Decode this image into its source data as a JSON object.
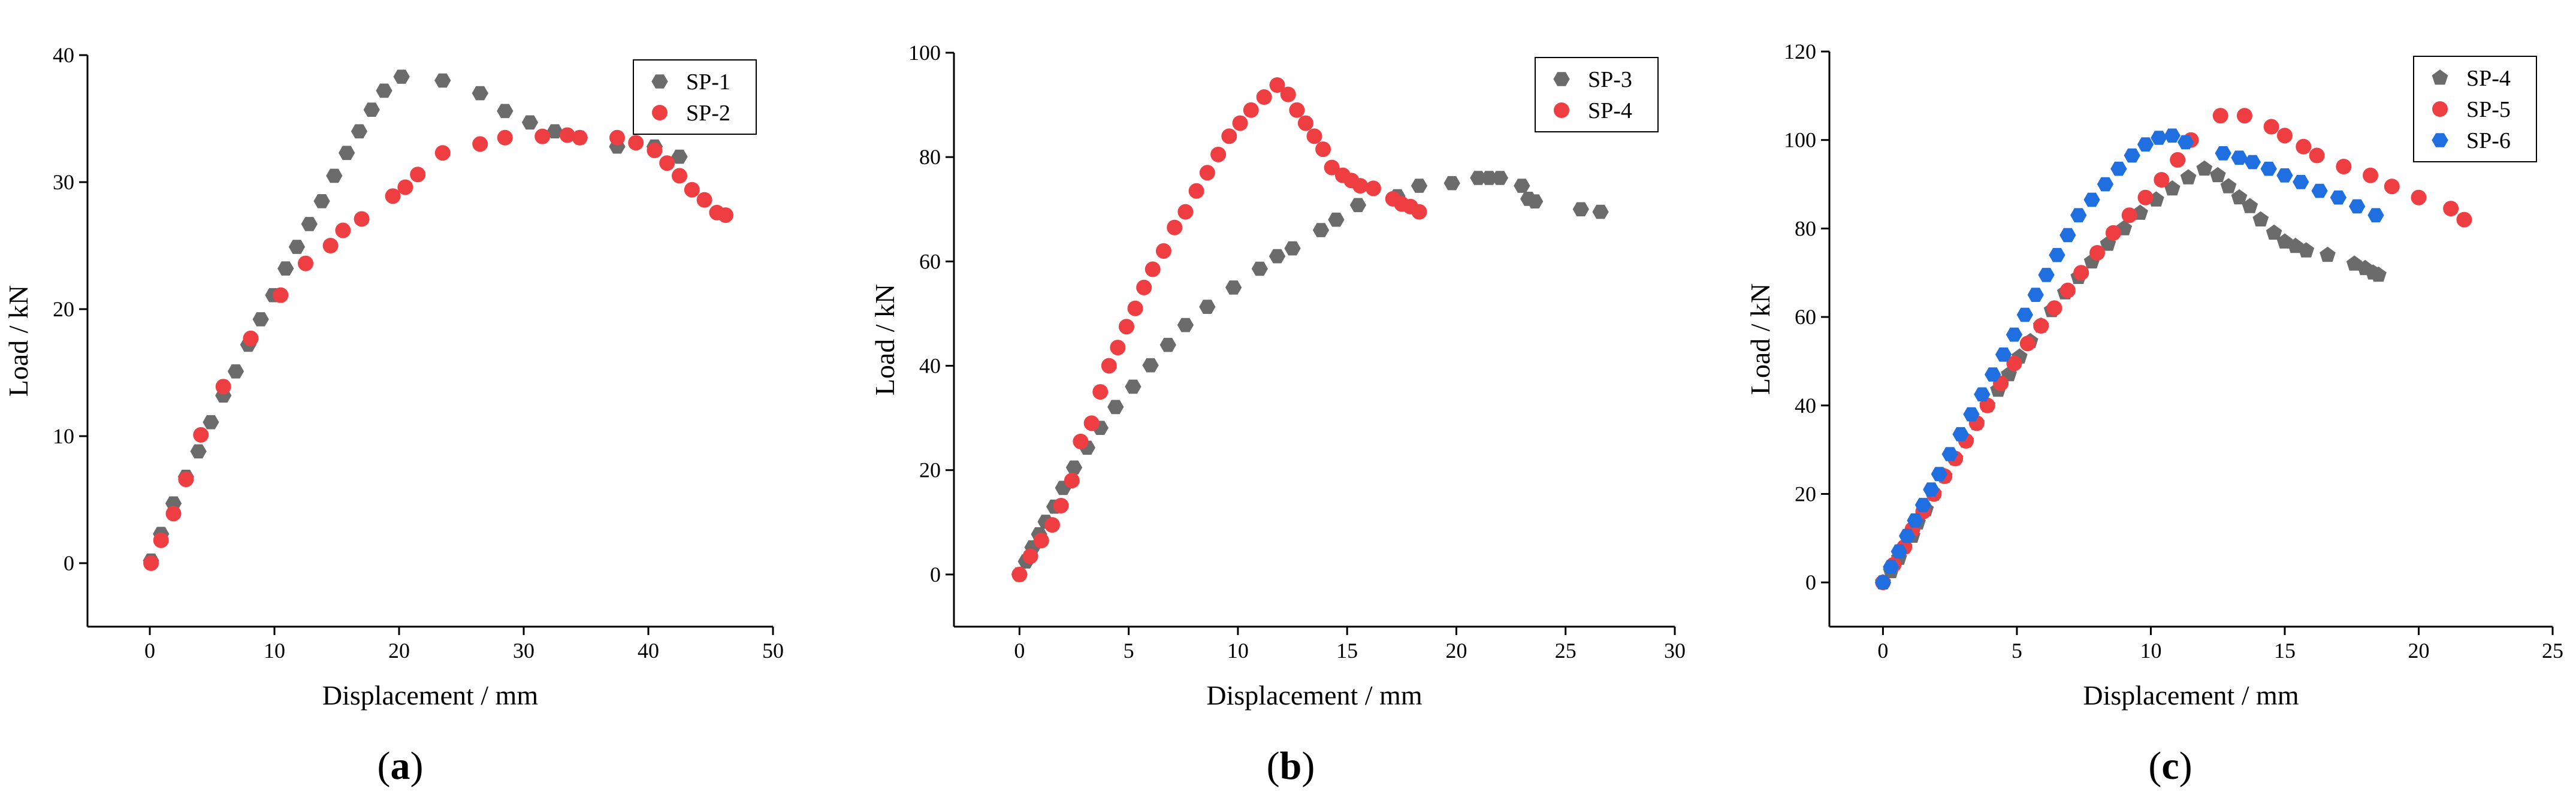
{
  "figure": {
    "colors": {
      "gray": "#6b6b6b",
      "red": "#ef3e42",
      "blue": "#1f6fe0",
      "axis": "#000000"
    }
  },
  "chart_data": [
    {
      "type": "scatter",
      "panel_label": "a",
      "xlabel": "Displacement / mm",
      "ylabel": "Load / kN",
      "xlim": [
        -5,
        50
      ],
      "ylim": [
        -5,
        40
      ],
      "xticks": [
        0,
        10,
        20,
        30,
        40,
        50
      ],
      "yticks": [
        0,
        10,
        20,
        30,
        40
      ],
      "xtick_labels": [
        "0",
        "10",
        "20",
        "30",
        "40",
        "50"
      ],
      "ytick_labels": [
        "0",
        "10",
        "20",
        "30",
        "40"
      ],
      "legend": "top-right",
      "series": [
        {
          "name": "SP-1",
          "marker": "hexagon",
          "color": "#6b6b6b",
          "x": [
            0.1,
            0.9,
            1.9,
            2.9,
            3.9,
            4.9,
            5.9,
            6.9,
            7.9,
            8.9,
            9.9,
            10.9,
            11.8,
            12.8,
            13.8,
            14.8,
            15.8,
            16.8,
            17.8,
            18.8,
            20.2,
            23.5,
            26.5,
            28.5,
            30.5,
            32.5,
            34.5,
            37.5,
            40.5,
            42.5
          ],
          "y": [
            0.2,
            2.3,
            4.7,
            6.8,
            8.8,
            11.1,
            13.2,
            15.1,
            17.2,
            19.2,
            21.1,
            23.2,
            24.9,
            26.7,
            28.5,
            30.5,
            32.3,
            34.0,
            35.7,
            37.2,
            38.3,
            38.0,
            37.0,
            35.6,
            34.7,
            34.0,
            33.5,
            32.8,
            32.8,
            32.0
          ]
        },
        {
          "name": "SP-2",
          "marker": "circle",
          "color": "#ef3e42",
          "x": [
            0.1,
            0.9,
            1.9,
            2.9,
            4.1,
            5.9,
            8.1,
            10.5,
            12.5,
            14.5,
            15.5,
            17.0,
            19.5,
            20.5,
            21.5,
            23.5,
            26.5,
            28.5,
            31.5,
            33.5,
            34.5,
            37.5,
            39.0,
            40.5,
            41.5,
            42.5,
            43.5,
            44.5,
            45.5,
            46.2
          ],
          "y": [
            0.0,
            1.8,
            3.9,
            6.6,
            10.1,
            13.9,
            17.7,
            21.1,
            23.6,
            25.0,
            26.2,
            27.1,
            28.9,
            29.6,
            30.6,
            32.3,
            33.0,
            33.5,
            33.6,
            33.7,
            33.5,
            33.5,
            33.1,
            32.5,
            31.5,
            30.5,
            29.4,
            28.6,
            27.6,
            27.4
          ]
        }
      ]
    },
    {
      "type": "scatter",
      "panel_label": "b",
      "xlabel": "Displacement / mm",
      "ylabel": "Load / kN",
      "xlim": [
        -3,
        30
      ],
      "ylim": [
        -10,
        100
      ],
      "xticks": [
        0,
        5,
        10,
        15,
        20,
        25,
        30
      ],
      "yticks": [
        0,
        20,
        40,
        60,
        80,
        100
      ],
      "xtick_labels": [
        "0",
        "5",
        "10",
        "15",
        "20",
        "25",
        "30"
      ],
      "ytick_labels": [
        "0",
        "20",
        "40",
        "60",
        "80",
        "100"
      ],
      "legend": "top-right",
      "series": [
        {
          "name": "SP-3",
          "marker": "hexagon",
          "color": "#6b6b6b",
          "x": [
            0.0,
            0.3,
            0.6,
            0.9,
            1.2,
            1.6,
            2.0,
            2.5,
            3.1,
            3.7,
            4.4,
            5.2,
            6.0,
            6.8,
            7.6,
            8.6,
            9.8,
            11.0,
            11.8,
            12.5,
            13.8,
            14.5,
            15.5,
            17.3,
            18.3,
            19.8,
            21.0,
            21.5,
            22.0,
            23.0,
            23.3,
            23.6,
            25.7,
            26.6
          ],
          "y": [
            0.0,
            2.5,
            5.2,
            7.7,
            10.1,
            13.0,
            16.6,
            20.5,
            24.3,
            28.1,
            32.1,
            36.0,
            40.1,
            44.0,
            47.8,
            51.3,
            55.0,
            58.6,
            61.0,
            62.5,
            66.0,
            68.0,
            70.8,
            72.5,
            74.5,
            75.0,
            76.0,
            76.0,
            76.0,
            74.5,
            72.0,
            71.5,
            70.0,
            69.5
          ]
        },
        {
          "name": "SP-4",
          "marker": "circle",
          "color": "#ef3e42",
          "x": [
            0.0,
            0.5,
            1.0,
            1.5,
            1.9,
            2.4,
            2.8,
            3.3,
            3.7,
            4.1,
            4.5,
            4.9,
            5.3,
            5.7,
            6.1,
            6.6,
            7.1,
            7.6,
            8.1,
            8.6,
            9.1,
            9.6,
            10.1,
            10.6,
            11.2,
            11.8,
            12.3,
            12.7,
            13.1,
            13.5,
            13.9,
            14.3,
            14.8,
            15.2,
            15.6,
            16.2,
            17.1,
            17.5,
            17.9,
            18.3
          ],
          "y": [
            0.0,
            3.5,
            6.5,
            9.5,
            13.2,
            18.0,
            25.5,
            29.0,
            35.0,
            40.0,
            43.5,
            47.5,
            51.0,
            55.0,
            58.5,
            62.0,
            66.5,
            69.5,
            73.5,
            77.0,
            80.5,
            84.0,
            86.5,
            89.0,
            91.5,
            93.8,
            92.0,
            89.0,
            86.5,
            84.0,
            81.5,
            78.0,
            76.5,
            75.5,
            74.5,
            74.0,
            72.0,
            71.0,
            70.5,
            69.5
          ]
        }
      ]
    },
    {
      "type": "scatter",
      "panel_label": "c",
      "xlabel": "Displacement / mm",
      "ylabel": "Load / kN",
      "xlim": [
        -2,
        25
      ],
      "ylim": [
        -10,
        120
      ],
      "xticks": [
        0,
        5,
        10,
        15,
        20,
        25
      ],
      "yticks": [
        0,
        20,
        40,
        60,
        80,
        100,
        120
      ],
      "xtick_labels": [
        "0",
        "5",
        "10",
        "15",
        "20",
        "25"
      ],
      "ytick_labels": [
        "0",
        "20",
        "40",
        "60",
        "80",
        "100",
        "120"
      ],
      "legend": "top-left",
      "series": [
        {
          "name": "SP-4",
          "marker": "pentagon",
          "color": "#6b6b6b",
          "x": [
            0.0,
            0.3,
            0.6,
            0.8,
            1.1,
            1.3,
            1.6,
            1.9,
            2.3,
            2.7,
            3.1,
            3.5,
            3.9,
            4.3,
            4.7,
            5.1,
            5.5,
            5.9,
            6.3,
            6.8,
            7.3,
            7.8,
            8.4,
            9.0,
            9.6,
            10.2,
            10.8,
            11.4,
            12.0,
            12.5,
            12.9,
            13.3,
            13.7,
            14.1,
            14.6,
            15.0,
            15.4,
            15.8,
            16.6,
            17.6,
            18.0,
            18.3,
            18.5
          ],
          "y": [
            0.0,
            2.5,
            5.5,
            8.0,
            10.5,
            13.5,
            16.5,
            20.0,
            24.0,
            28.0,
            32.0,
            36.0,
            40.0,
            43.5,
            47.0,
            51.0,
            54.5,
            58.0,
            61.5,
            65.5,
            69.0,
            72.5,
            76.5,
            80.0,
            83.5,
            86.5,
            89.0,
            91.5,
            93.5,
            92.0,
            89.5,
            87.0,
            85.0,
            82.0,
            79.0,
            77.0,
            76.0,
            75.0,
            74.0,
            72.0,
            71.0,
            70.0,
            69.5
          ]
        },
        {
          "name": "SP-5",
          "marker": "circle",
          "color": "#ef3e42",
          "x": [
            0.0,
            0.4,
            0.8,
            1.1,
            1.5,
            1.9,
            2.3,
            2.7,
            3.1,
            3.5,
            3.9,
            4.4,
            4.9,
            5.4,
            5.9,
            6.4,
            6.9,
            7.4,
            8.0,
            8.6,
            9.2,
            9.8,
            10.4,
            11.0,
            11.5,
            12.6,
            13.5,
            14.5,
            15.0,
            15.7,
            16.2,
            17.2,
            18.2,
            19.0,
            20.0,
            21.2,
            21.7
          ],
          "y": [
            0.0,
            4.0,
            8.0,
            12.0,
            16.0,
            20.0,
            24.0,
            28.0,
            32.0,
            36.0,
            40.0,
            45.0,
            49.5,
            54.0,
            58.0,
            62.0,
            66.0,
            70.0,
            74.5,
            79.0,
            83.0,
            87.0,
            91.0,
            95.5,
            100.0,
            105.5,
            105.5,
            103.0,
            101.0,
            98.5,
            96.5,
            94.0,
            92.0,
            89.5,
            87.0,
            84.5,
            82.0
          ]
        },
        {
          "name": "SP-6",
          "marker": "hexagon",
          "color": "#1f6fe0",
          "x": [
            0.0,
            0.3,
            0.6,
            0.9,
            1.2,
            1.5,
            1.8,
            2.1,
            2.5,
            2.9,
            3.3,
            3.7,
            4.1,
            4.5,
            4.9,
            5.3,
            5.7,
            6.1,
            6.5,
            6.9,
            7.3,
            7.8,
            8.3,
            8.8,
            9.3,
            9.8,
            10.3,
            10.8,
            11.3,
            12.7,
            13.3,
            13.8,
            14.4,
            15.0,
            15.6,
            16.3,
            17.0,
            17.7,
            18.4
          ],
          "y": [
            0.0,
            3.5,
            7.0,
            10.5,
            14.0,
            17.5,
            21.0,
            24.5,
            29.0,
            33.5,
            38.0,
            42.5,
            47.0,
            51.5,
            56.0,
            60.5,
            65.0,
            69.5,
            74.0,
            78.5,
            83.0,
            86.5,
            90.0,
            93.5,
            96.5,
            99.0,
            100.5,
            101.0,
            99.5,
            97.0,
            96.0,
            95.0,
            93.5,
            92.0,
            90.5,
            88.5,
            87.0,
            85.0,
            83.0
          ]
        }
      ]
    }
  ]
}
